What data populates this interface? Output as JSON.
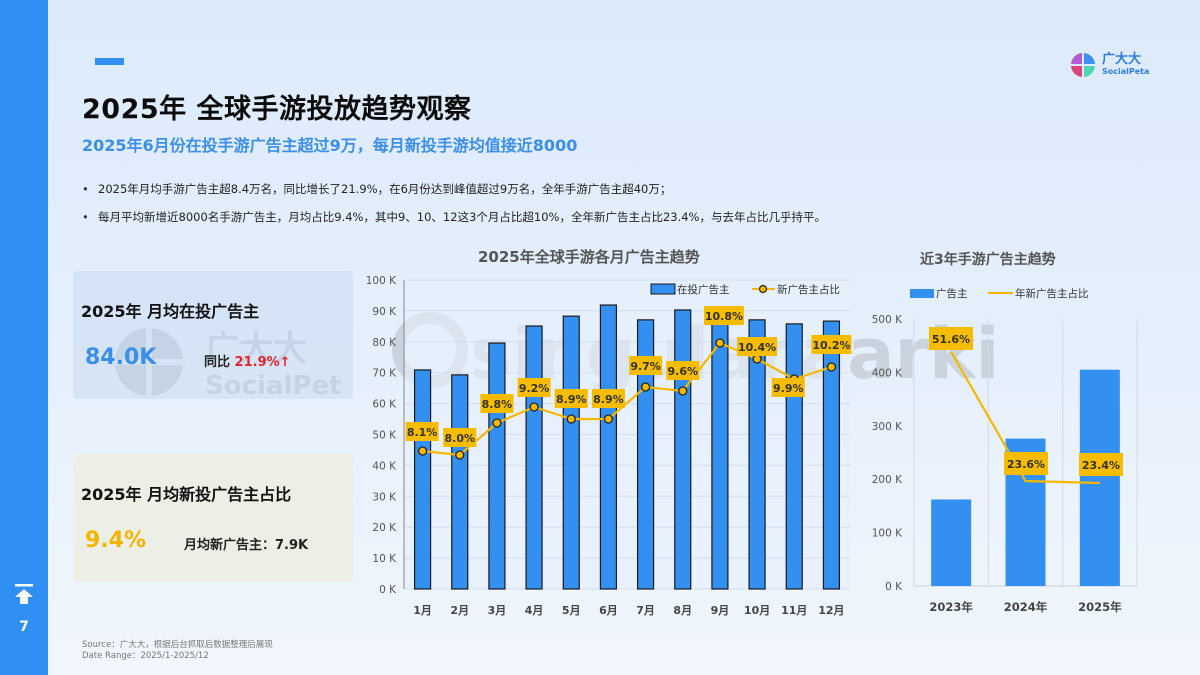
{
  "page": {
    "number": "7",
    "title": "2025年 全球手游投放趋势观察",
    "subtitle": "2025年6月份在投手游广告主超过9万，每月新投手游均值接近8000",
    "bullets": [
      "2025年月均手游广告主超8.4万名，同比增长了21.9%，在6月份达到峰值超过9万名，全年手游广告主超40万；",
      "每月平均新增近8000名手游广告主，月均占比9.4%，其中9、10、12这3个月占比超10%，全年新广告主占比23.4%，与去年占比几乎持平。"
    ],
    "logo": {
      "cn": "广大大",
      "en": "SocialPeta"
    },
    "source": "Source：广大大，根据后台抓取后数据整理后展现",
    "date_range": "Date Range：2025/1-2025/12"
  },
  "cards": {
    "active": {
      "title": "2025年 月均在投广告主",
      "value": "84.0K",
      "yoy_label": "同比",
      "yoy_value": "21.9%",
      "yoy_arrow": "↑",
      "watermark_cn": "广大大",
      "watermark_en": "SocialPeta"
    },
    "new": {
      "title": "2025年 月均新投广告主占比",
      "value": "9.4%",
      "side_label": "月均新广告主：7.9K"
    }
  },
  "colors": {
    "accent": "#2f8ff2",
    "bar": "#3390f0",
    "line": "#f5b800",
    "label_bg": "#f6bc00",
    "up": "#e0262b"
  },
  "chart_data": [
    {
      "type": "bar+line",
      "title": "2025年全球手游各月广告主趋势",
      "categories": [
        "1月",
        "2月",
        "3月",
        "4月",
        "5月",
        "6月",
        "7月",
        "8月",
        "9月",
        "10月",
        "11月",
        "12月"
      ],
      "series": [
        {
          "name": "在投广告主",
          "type": "bar",
          "axis": "left",
          "values": [
            70.9,
            69.3,
            79.6,
            85.1,
            88.3,
            91.9,
            87.1,
            90.3,
            85.8,
            87.1,
            85.8,
            86.7
          ],
          "unit": "K"
        },
        {
          "name": "新广告主占比",
          "type": "line",
          "axis": "right-hidden",
          "values": [
            8.1,
            8.0,
            8.8,
            9.2,
            8.9,
            8.9,
            9.7,
            9.6,
            10.8,
            10.4,
            9.9,
            10.2
          ],
          "labels": [
            "8.1%",
            "8.0%",
            "8.8%",
            "9.2%",
            "8.9%",
            "8.9%",
            "9.7%",
            "9.6%",
            "10.8%",
            "10.4%",
            "9.9%",
            "10.2%"
          ],
          "unit": "%"
        }
      ],
      "yticks": [
        "0 K",
        "10 K",
        "20 K",
        "30 K",
        "40 K",
        "50 K",
        "60 K",
        "70 K",
        "80 K",
        "90 K",
        "100 K"
      ],
      "ylim": [
        0,
        100
      ],
      "grid": true,
      "legend_position": "top-right"
    },
    {
      "type": "bar+line",
      "title": "近3年手游广告主趋势",
      "categories": [
        "2023年",
        "2024年",
        "2025年"
      ],
      "series": [
        {
          "name": "广告主",
          "type": "bar",
          "axis": "left",
          "values": [
            162,
            276,
            405
          ],
          "unit": "K"
        },
        {
          "name": "年新广告主占比",
          "type": "line",
          "axis": "right-hidden",
          "values": [
            51.6,
            23.6,
            23.4
          ],
          "labels": [
            "51.6%",
            "23.6%",
            "23.4%"
          ],
          "unit": "%"
        }
      ],
      "yticks": [
        "0 K",
        "100 K",
        "200 K",
        "300 K",
        "400 K",
        "500 K"
      ],
      "ylim": [
        0,
        500
      ],
      "grid": true,
      "legend_position": "top"
    }
  ]
}
